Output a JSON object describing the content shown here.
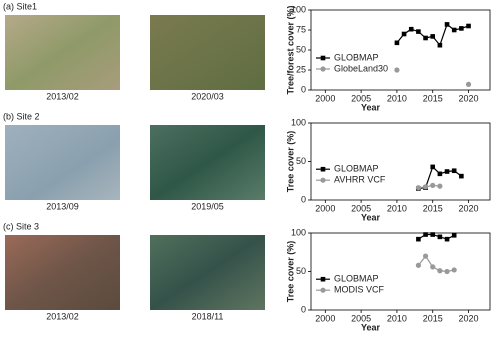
{
  "panels": [
    {
      "label": "(a) Site1",
      "images": [
        "2013/02",
        "2020/03"
      ]
    },
    {
      "label": "(b) Site 2",
      "images": [
        "2013/09",
        "2019/05"
      ]
    },
    {
      "label": "(c) Site 3",
      "images": [
        "2013/02",
        "2018/11"
      ]
    }
  ],
  "chart_data": [
    {
      "type": "line",
      "y_label": "Tree/forest cover (%)",
      "x_label": "Year",
      "x": [
        2010,
        2011,
        2012,
        2013,
        2014,
        2015,
        2016,
        2017,
        2018,
        2019,
        2020
      ],
      "series": [
        {
          "name": "GLOBMAP",
          "color": "#000000",
          "marker": "square",
          "line": true,
          "values": [
            59,
            70,
            76,
            73,
            65,
            67,
            56,
            82,
            75,
            77,
            80
          ]
        },
        {
          "name": "GlobeLand30",
          "color": "#999999",
          "marker": "circle",
          "line": false,
          "values": [
            25,
            null,
            null,
            null,
            null,
            null,
            null,
            null,
            null,
            null,
            7
          ]
        }
      ],
      "xlim": [
        1998,
        2023
      ],
      "xticks": [
        2000,
        2005,
        2010,
        2015,
        2020
      ],
      "ylim": [
        0,
        100
      ],
      "yticks": [
        0,
        25,
        50,
        75,
        100
      ],
      "legend": "upper left"
    },
    {
      "type": "line",
      "y_label": "Tree cover (%)",
      "x_label": "Year",
      "x": [
        2013,
        2014,
        2015,
        2016,
        2017,
        2018,
        2019
      ],
      "series": [
        {
          "name": "GLOBMAP",
          "color": "#000000",
          "marker": "square",
          "line": true,
          "values": [
            15,
            16,
            43,
            34,
            37,
            38,
            31
          ]
        },
        {
          "name": "AVHRR VCF",
          "color": "#999999",
          "marker": "circle",
          "line": true,
          "values": [
            16,
            17,
            19,
            18,
            null,
            null,
            null
          ]
        }
      ],
      "xlim": [
        1998,
        2023
      ],
      "xticks": [
        2000,
        2005,
        2010,
        2015,
        2020
      ],
      "ylim": [
        0,
        100
      ],
      "yticks": [
        0,
        50,
        100
      ],
      "legend": "upper left"
    },
    {
      "type": "line",
      "y_label": "Tree cover (%)",
      "x_label": "Year",
      "x": [
        2013,
        2014,
        2015,
        2016,
        2017,
        2018
      ],
      "series": [
        {
          "name": "GLOBMAP",
          "color": "#000000",
          "marker": "square",
          "line": true,
          "values": [
            92,
            98,
            98,
            95,
            92,
            97
          ]
        },
        {
          "name": "MODIS VCF",
          "color": "#999999",
          "marker": "circle",
          "line": true,
          "values": [
            58,
            70,
            56,
            51,
            50,
            52
          ]
        }
      ],
      "xlim": [
        1998,
        2023
      ],
      "xticks": [
        2000,
        2005,
        2010,
        2015,
        2020
      ],
      "ylim": [
        0,
        100
      ],
      "yticks": [
        0,
        50,
        100
      ],
      "legend": "upper left"
    }
  ]
}
